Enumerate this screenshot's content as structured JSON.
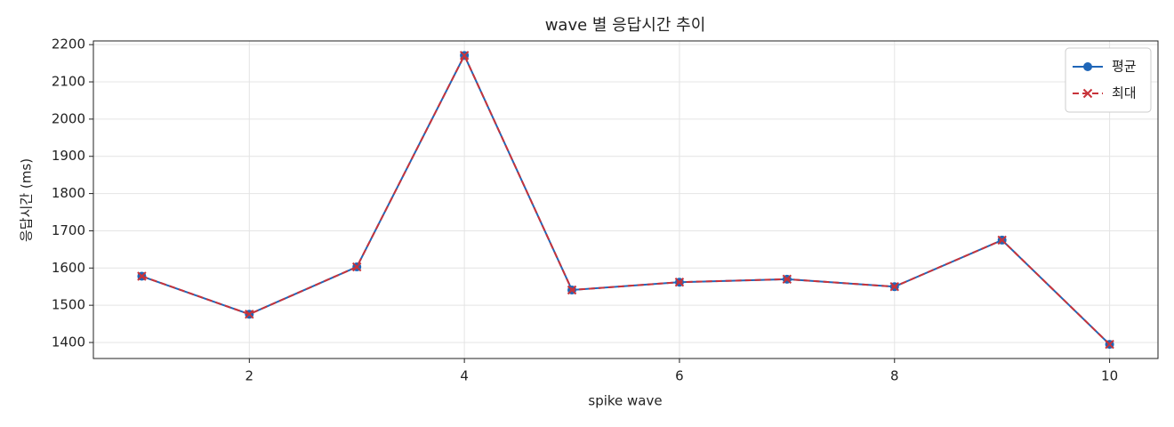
{
  "chart_data": {
    "type": "line",
    "title": "wave 별 응답시간 추이",
    "x_label": "spike wave",
    "y_label": "응답시간 (ms)",
    "x": [
      1,
      2,
      3,
      4,
      5,
      6,
      7,
      8,
      9,
      10
    ],
    "series": [
      {
        "name": "평균",
        "color": "#1f66b8",
        "linestyle": "solid",
        "marker": "o",
        "values": [
          1578,
          1476,
          1603,
          2171,
          1541,
          1562,
          1570,
          1550,
          1675,
          1395
        ]
      },
      {
        "name": "최대",
        "color": "#c8333a",
        "linestyle": "dashed",
        "marker": "x",
        "values": [
          1578,
          1476,
          1603,
          2171,
          1541,
          1562,
          1570,
          1550,
          1675,
          1395
        ]
      }
    ],
    "xlim": [
      0.55,
      10.45
    ],
    "xticks": [
      2,
      4,
      6,
      8,
      10
    ],
    "ylim": [
      1357,
      2210
    ],
    "yticks": [
      1400,
      1500,
      1600,
      1700,
      1800,
      1900,
      2000,
      2100,
      2200
    ],
    "grid": true,
    "legend": "upper right"
  }
}
